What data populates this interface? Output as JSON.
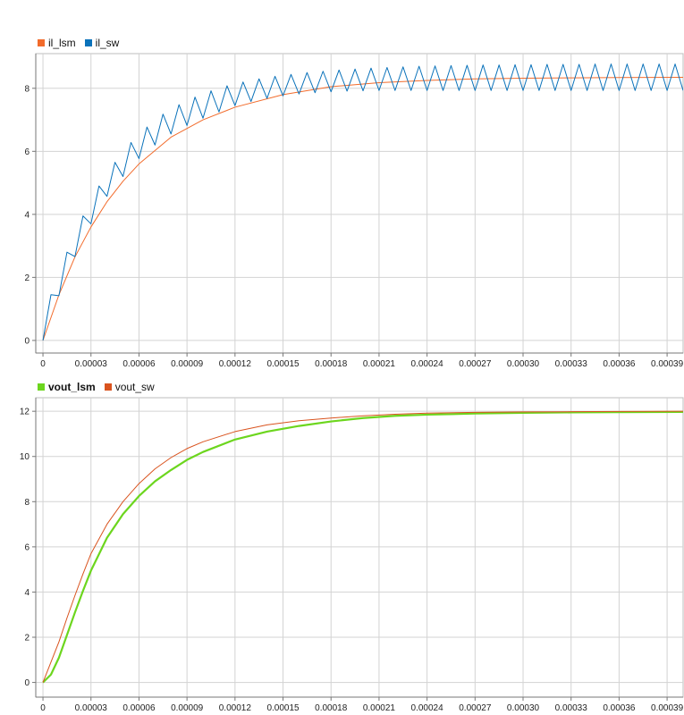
{
  "colors": {
    "il_lsm": "#f26b2b",
    "il_sw": "#0a72ba",
    "vout_lsm": "#6cd61e",
    "vout_sw": "#d9531e",
    "grid": "#d3d3d3",
    "axis": "#222222"
  },
  "chart_data": [
    {
      "type": "line",
      "title": "",
      "xlabel": "",
      "ylabel": "",
      "xlim": [
        -4.5e-06,
        0.0004
      ],
      "ylim": [
        -0.4,
        9.1
      ],
      "x_ticks": [
        0,
        3e-05,
        6e-05,
        9e-05,
        0.00012,
        0.00015,
        0.00018,
        0.00021,
        0.00024,
        0.00027,
        0.0003,
        0.00033,
        0.00036,
        0.00039
      ],
      "x_tick_labels": [
        "0",
        "0.00003",
        "0.00006",
        "0.00009",
        "0.00012",
        "0.00015",
        "0.00018",
        "0.00021",
        "0.00024",
        "0.00027",
        "0.00030",
        "0.00033",
        "0.00036",
        "0.00039"
      ],
      "y_ticks": [
        0,
        2,
        4,
        6,
        8
      ],
      "y_tick_labels": [
        "0",
        "2",
        "4",
        "6",
        "8"
      ],
      "grid": true,
      "legend": "top-left",
      "series": [
        {
          "name": "il_lsm",
          "color": "#f26b2b",
          "x": [
            0,
            1e-05,
            2e-05,
            3e-05,
            4e-05,
            5e-05,
            6e-05,
            8e-05,
            0.0001,
            0.00012,
            0.00015,
            0.00018,
            0.00021,
            0.00024,
            0.00027,
            0.0003,
            0.00033,
            0.00036,
            0.0004
          ],
          "y": [
            0,
            1.45,
            2.65,
            3.6,
            4.4,
            5.05,
            5.6,
            6.45,
            7.0,
            7.4,
            7.8,
            8.05,
            8.18,
            8.25,
            8.3,
            8.32,
            8.33,
            8.34,
            8.35
          ]
        },
        {
          "name": "il_sw",
          "color": "#0a72ba",
          "x": [
            0,
            5e-06,
            1e-05,
            1.5e-05,
            2e-05,
            2.5e-05,
            3e-05,
            3.5e-05,
            4e-05,
            4.5e-05,
            5e-05,
            5.5e-05,
            6e-05,
            6.5e-05,
            7e-05,
            7.5e-05,
            8e-05,
            8.5e-05,
            9e-05,
            9.5e-05,
            0.0001,
            0.000105,
            0.00011,
            0.000115,
            0.00012,
            0.000125,
            0.00013,
            0.000135,
            0.00014,
            0.000145,
            0.00015,
            0.000155,
            0.00016,
            0.000165,
            0.00017,
            0.000175,
            0.00018,
            0.000185,
            0.00019,
            0.000195,
            0.0002,
            0.000205,
            0.00021,
            0.000215,
            0.00022,
            0.000225,
            0.00023,
            0.000235,
            0.00024,
            0.000245,
            0.00025,
            0.000255,
            0.00026,
            0.000265,
            0.00027,
            0.000275,
            0.00028,
            0.000285,
            0.00029,
            0.000295,
            0.0003,
            0.000305,
            0.00031,
            0.000315,
            0.00032,
            0.000325,
            0.00033,
            0.000335,
            0.00034,
            0.000345,
            0.00035,
            0.000355,
            0.00036,
            0.000365,
            0.00037,
            0.000375,
            0.00038,
            0.000385,
            0.00039,
            0.000395,
            0.0004
          ],
          "y": [
            0,
            1.45,
            1.42,
            2.8,
            2.66,
            3.95,
            3.7,
            4.9,
            4.57,
            5.65,
            5.2,
            6.28,
            5.77,
            6.77,
            6.2,
            7.18,
            6.55,
            7.48,
            6.82,
            7.72,
            7.05,
            7.92,
            7.25,
            8.08,
            7.45,
            8.2,
            7.58,
            8.3,
            7.68,
            8.38,
            7.76,
            8.44,
            7.82,
            8.5,
            7.86,
            8.54,
            7.89,
            8.58,
            7.91,
            8.61,
            7.92,
            8.64,
            7.93,
            8.66,
            7.93,
            8.68,
            7.93,
            8.7,
            7.93,
            8.71,
            7.93,
            8.72,
            7.93,
            8.73,
            7.93,
            8.74,
            7.93,
            8.74,
            7.93,
            8.75,
            7.93,
            8.75,
            7.93,
            8.76,
            7.93,
            8.76,
            7.93,
            8.76,
            7.93,
            8.77,
            7.93,
            8.77,
            7.93,
            8.77,
            7.93,
            8.77,
            7.93,
            8.77,
            7.93,
            8.77,
            7.93
          ]
        }
      ]
    },
    {
      "type": "line",
      "title": "",
      "xlabel": "",
      "ylabel": "",
      "xlim": [
        -4.5e-06,
        0.0004
      ],
      "ylim": [
        -0.65,
        12.6
      ],
      "x_ticks": [
        0,
        3e-05,
        6e-05,
        9e-05,
        0.00012,
        0.00015,
        0.00018,
        0.00021,
        0.00024,
        0.00027,
        0.0003,
        0.00033,
        0.00036,
        0.00039
      ],
      "x_tick_labels": [
        "0",
        "0.00003",
        "0.00006",
        "0.00009",
        "0.00012",
        "0.00015",
        "0.00018",
        "0.00021",
        "0.00024",
        "0.00027",
        "0.00030",
        "0.00033",
        "0.00036",
        "0.00039"
      ],
      "y_ticks": [
        0,
        2,
        4,
        6,
        8,
        10,
        12
      ],
      "y_tick_labels": [
        "0",
        "2",
        "4",
        "6",
        "8",
        "10",
        "12"
      ],
      "grid": true,
      "legend": "top-left",
      "series": [
        {
          "name": "vout_lsm",
          "color": "#6cd61e",
          "x": [
            0,
            5e-06,
            1e-05,
            1.5e-05,
            2e-05,
            2.5e-05,
            3e-05,
            4e-05,
            5e-05,
            6e-05,
            7e-05,
            8e-05,
            9e-05,
            0.0001,
            0.00012,
            0.00014,
            0.00016,
            0.00018,
            0.0002,
            0.00022,
            0.00024,
            0.00027,
            0.0003,
            0.00033,
            0.00036,
            0.0004
          ],
          "y": [
            0,
            0.35,
            1.1,
            2.1,
            3.1,
            4.05,
            4.95,
            6.4,
            7.45,
            8.25,
            8.9,
            9.4,
            9.85,
            10.2,
            10.75,
            11.1,
            11.35,
            11.55,
            11.7,
            11.8,
            11.85,
            11.9,
            11.93,
            11.95,
            11.96,
            11.97
          ]
        },
        {
          "name": "vout_sw",
          "color": "#d9531e",
          "x": [
            0,
            5e-06,
            1e-05,
            1.5e-05,
            2e-05,
            2.5e-05,
            3e-05,
            4e-05,
            5e-05,
            6e-05,
            7e-05,
            8e-05,
            9e-05,
            0.0001,
            0.00012,
            0.00014,
            0.00016,
            0.00018,
            0.0002,
            0.00022,
            0.00024,
            0.00027,
            0.0003,
            0.00033,
            0.00036,
            0.0004
          ],
          "y": [
            0,
            0.9,
            1.8,
            2.85,
            3.85,
            4.8,
            5.7,
            7.0,
            8.0,
            8.8,
            9.45,
            9.95,
            10.35,
            10.65,
            11.1,
            11.4,
            11.58,
            11.7,
            11.8,
            11.87,
            11.92,
            11.95,
            11.97,
            11.98,
            11.99,
            12.0
          ]
        }
      ]
    }
  ],
  "legends": [
    {
      "items": [
        {
          "label": "il_lsm",
          "color": "#f26b2b",
          "bold": false
        },
        {
          "label": "il_sw",
          "color": "#0a72ba",
          "bold": false
        }
      ]
    },
    {
      "items": [
        {
          "label": "vout_lsm",
          "color": "#6cd61e",
          "bold": true
        },
        {
          "label": "vout_sw",
          "color": "#d9531e",
          "bold": false
        }
      ]
    }
  ]
}
